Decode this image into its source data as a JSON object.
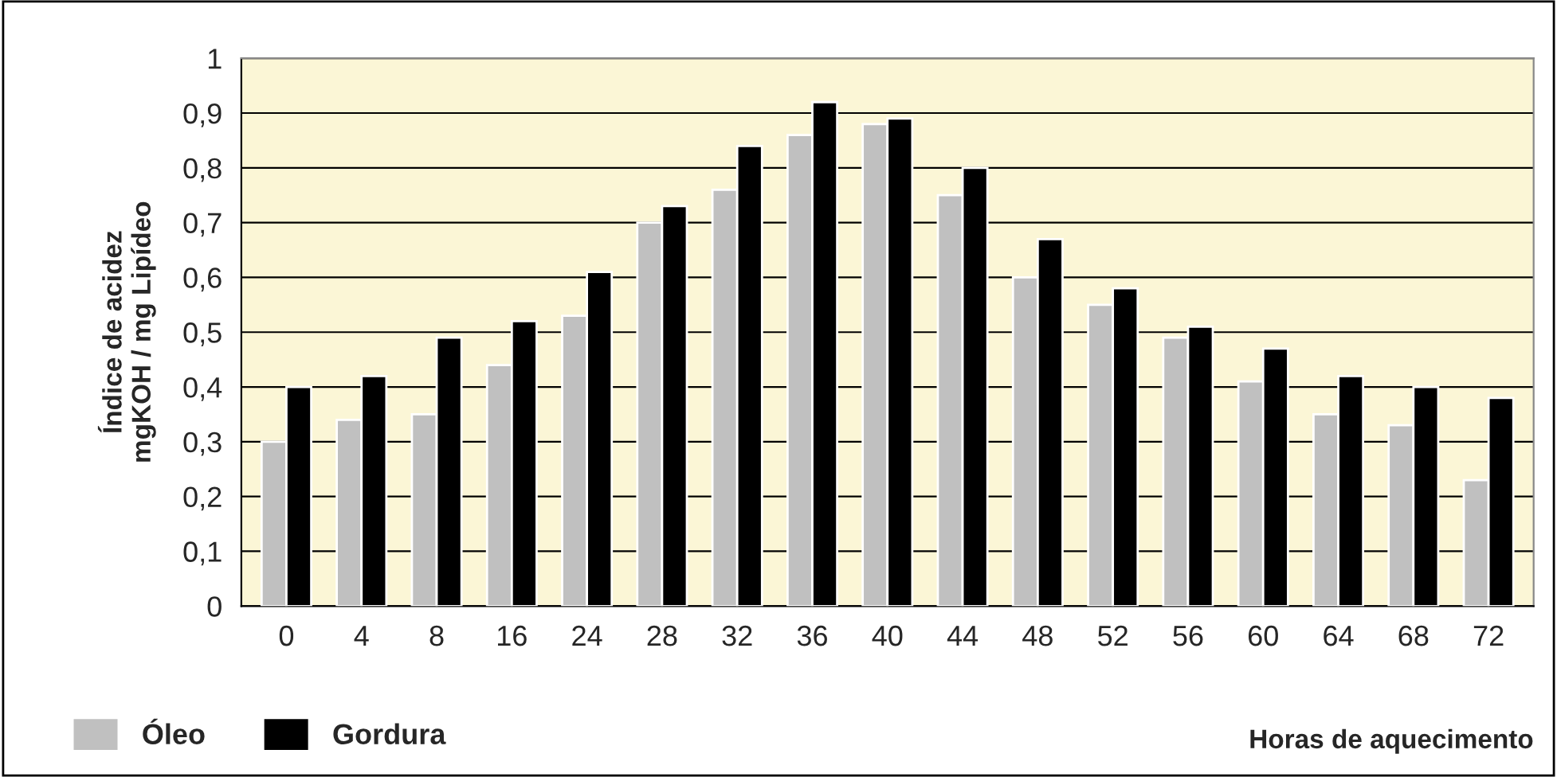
{
  "chart_data": {
    "type": "bar",
    "ylabel": "Índice de acidez\nmgKOH / mg Lipídeo",
    "xlabel": "Horas de aquecimento",
    "categories": [
      "0",
      "4",
      "8",
      "16",
      "24",
      "28",
      "32",
      "36",
      "40",
      "44",
      "48",
      "52",
      "56",
      "60",
      "64",
      "68",
      "72"
    ],
    "series": [
      {
        "name": "Óleo",
        "color": "#c0c0c0",
        "values": [
          0.3,
          0.34,
          0.35,
          0.44,
          0.53,
          0.7,
          0.76,
          0.86,
          0.88,
          0.75,
          0.6,
          0.55,
          0.49,
          0.41,
          0.35,
          0.33,
          0.23
        ]
      },
      {
        "name": "Gordura",
        "color": "#000000",
        "values": [
          0.4,
          0.42,
          0.49,
          0.52,
          0.61,
          0.73,
          0.84,
          0.92,
          0.89,
          0.8,
          0.67,
          0.58,
          0.51,
          0.47,
          0.42,
          0.4,
          0.38
        ]
      }
    ],
    "ylim": [
      0,
      1
    ],
    "yticks": [
      0,
      {
        "value": 0.1,
        "label": "0,1"
      },
      {
        "value": 0.2,
        "label": "0,2"
      },
      {
        "value": 0.3,
        "label": "0,3"
      },
      {
        "value": 0.4,
        "label": "0,4"
      },
      {
        "value": 0.5,
        "label": "0,5"
      },
      {
        "value": 0.6,
        "label": "0,6"
      },
      {
        "value": 0.7,
        "label": "0,7"
      },
      {
        "value": 0.8,
        "label": "0,8"
      },
      {
        "value": 0.9,
        "label": "0,9"
      },
      1
    ],
    "grid": "y",
    "legend": "bottom left"
  }
}
